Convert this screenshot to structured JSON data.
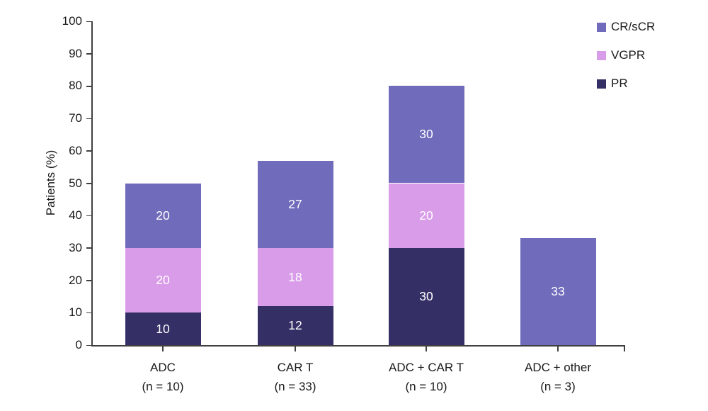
{
  "figure": {
    "background_color": "#ffffff",
    "axis_color": "#404040",
    "text_color": "#1a1a1a"
  },
  "chart_data": {
    "type": "bar",
    "stacked": true,
    "title": "",
    "xlabel": "",
    "ylabel": "Patients (%)",
    "ylim": [
      0,
      100
    ],
    "ytick_step": 10,
    "ytick_labels": [
      "0",
      "10",
      "20",
      "30",
      "40",
      "50",
      "60",
      "70",
      "80",
      "90",
      "100"
    ],
    "grid": false,
    "legend_position": "top-right",
    "legend_order": [
      "CR/sCR",
      "VGPR",
      "PR"
    ],
    "categories": [
      {
        "label": "ADC",
        "sublabel": "(n = 10)"
      },
      {
        "label": "CAR T",
        "sublabel": "(n = 33)"
      },
      {
        "label": "ADC + CAR T",
        "sublabel": "(n = 10)"
      },
      {
        "label": "ADC + other",
        "sublabel": "(n = 3)"
      }
    ],
    "series": [
      {
        "name": "PR",
        "color": "#343066",
        "values": [
          10,
          12,
          30,
          0
        ]
      },
      {
        "name": "VGPR",
        "color": "#D99CE9",
        "values": [
          20,
          18,
          20,
          0
        ]
      },
      {
        "name": "CR/sCR",
        "color": "#716BBC",
        "values": [
          20,
          27,
          30,
          33
        ]
      }
    ],
    "bar_totals": [
      50,
      57,
      80,
      33
    ],
    "value_label_color": "#ffffff"
  }
}
